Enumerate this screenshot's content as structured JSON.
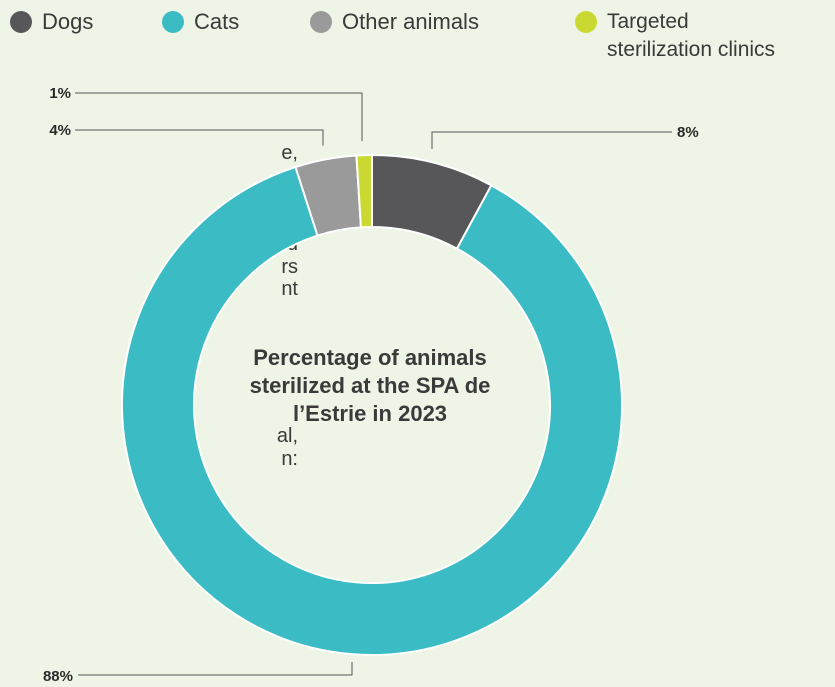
{
  "legend": [
    {
      "label": "Dogs",
      "color": "#575759"
    },
    {
      "label": "Cats",
      "color": "#3bbcc4"
    },
    {
      "label": "Other animals",
      "color": "#9a9a9a"
    },
    {
      "label": "Targeted\nsterilization clinics",
      "color": "#c9d932"
    }
  ],
  "cropped_text": {
    "block1": "e,\nal\nof\nls\nnd\nrs\nnt",
    "block2": "al,\nn:"
  },
  "chart_data": {
    "type": "pie",
    "donut": true,
    "title": "Percentage of animals sterilized at the SPA de l’Estrie in 2023",
    "title_lines": [
      "Percentage of animals",
      "sterilized at the SPA de",
      "l’Estrie in 2023"
    ],
    "slices": [
      {
        "label": "Dogs",
        "value": 8,
        "value_label": "8%",
        "color": "#575759"
      },
      {
        "label": "Cats",
        "value": 88,
        "value_label": "88%",
        "color": "#3bbcc4"
      },
      {
        "label": "Other animals",
        "value": 4,
        "value_label": "4%",
        "color": "#9a9a9a"
      },
      {
        "label": "Targeted sterilization clinics",
        "value": 1,
        "value_label": "1%",
        "color": "#c9d932"
      }
    ],
    "legend_position": "top"
  }
}
